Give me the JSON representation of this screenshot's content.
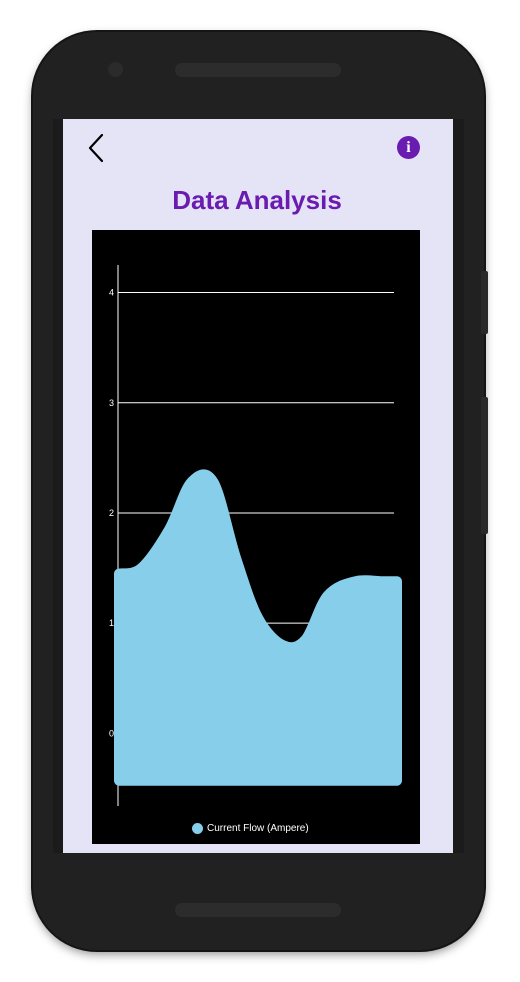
{
  "header": {
    "title": "Data Analysis",
    "info_label": "i"
  },
  "colors": {
    "accent": "#6a1bb0",
    "screen_background": "#e5e4f7",
    "chart_background": "#000000",
    "series": "#87ceeb",
    "grid": "#ffffff"
  },
  "icons": {
    "back": "chevron-left-icon",
    "info": "info-icon"
  },
  "chart_data": {
    "type": "area",
    "x": [
      0,
      0.8,
      1.8,
      2.6,
      3.4,
      4.2,
      5.0,
      5.9,
      6.7,
      7.5,
      8.5,
      9.5,
      10
    ],
    "values": [
      1.45,
      1.5,
      1.85,
      2.28,
      2.28,
      1.6,
      1.05,
      0.8,
      0.85,
      1.25,
      1.38,
      1.38,
      1.38
    ],
    "ytick_labels": [
      "0",
      "1",
      "2",
      "3",
      "4"
    ],
    "ylim": [
      -0.65,
      4.25
    ],
    "grid": "horizontal",
    "legend": {
      "label": "Current Flow (Ampere)",
      "placement": "bottom-center"
    }
  }
}
